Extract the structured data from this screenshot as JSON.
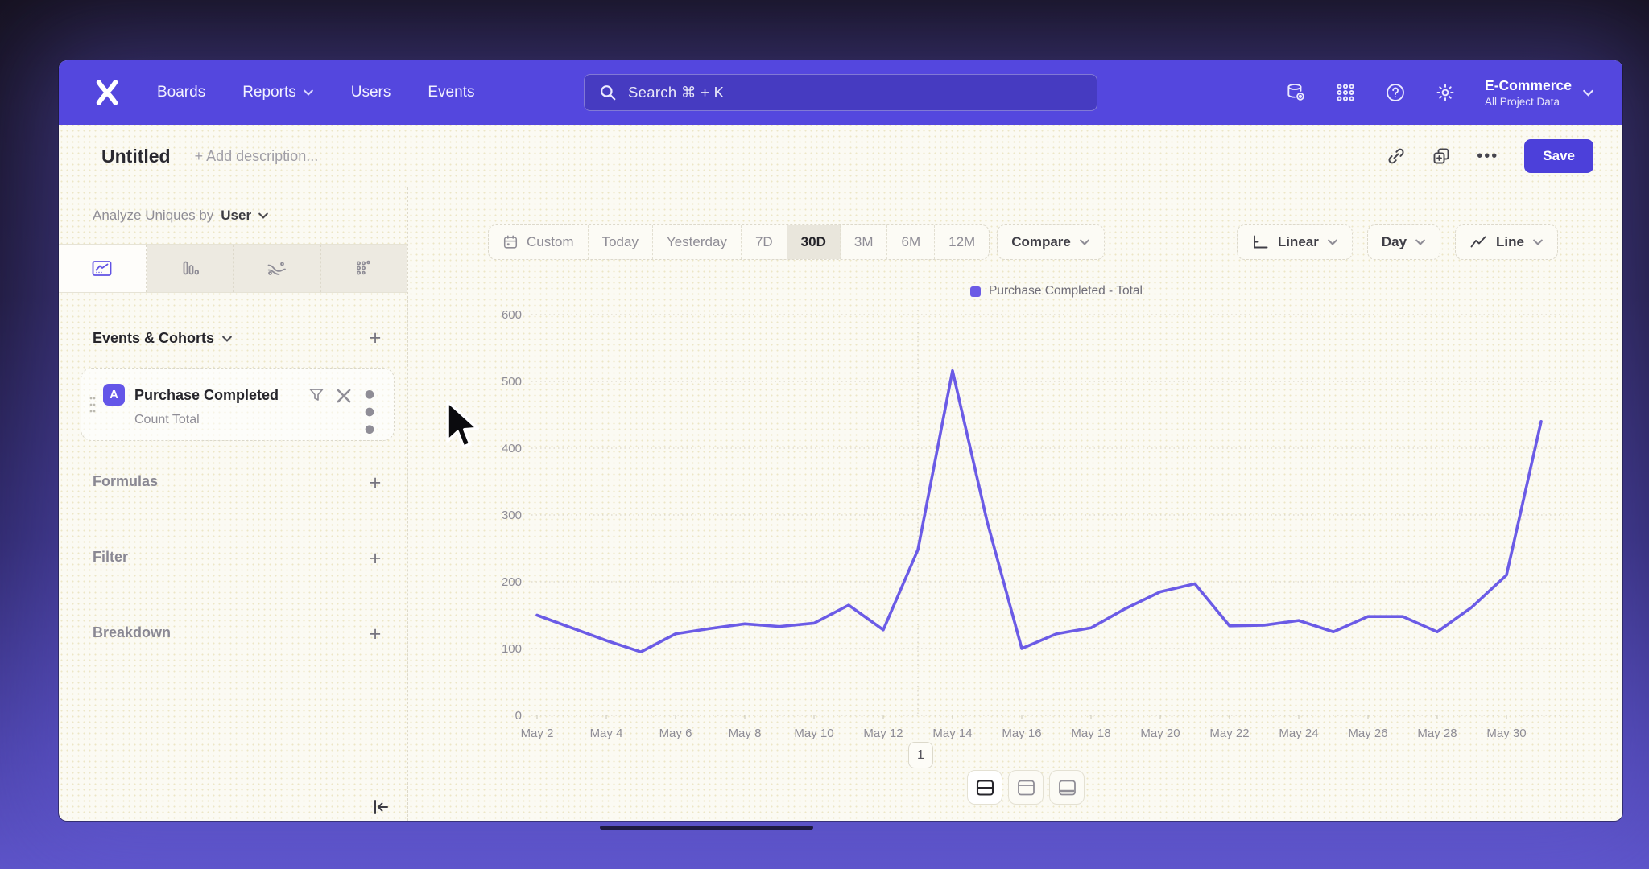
{
  "nav": {
    "items": [
      "Boards",
      "Reports",
      "Users",
      "Events"
    ],
    "search_placeholder": "Search  ⌘ + K",
    "project": {
      "name": "E-Commerce",
      "subtitle": "All Project Data"
    }
  },
  "header": {
    "title": "Untitled",
    "description_placeholder": "+ Add description...",
    "more_label": "•••",
    "save_label": "Save"
  },
  "sidebar": {
    "analyze_label": "Analyze Uniques by",
    "analyze_value": "User",
    "events_section_label": "Events & Cohorts",
    "event_card": {
      "badge": "A",
      "title": "Purchase Completed",
      "subtitle": "Count Total"
    },
    "sections": [
      {
        "label": "Formulas"
      },
      {
        "label": "Filter"
      },
      {
        "label": "Breakdown"
      }
    ]
  },
  "controls": {
    "ranges": [
      "Custom",
      "Today",
      "Yesterday",
      "7D",
      "30D",
      "3M",
      "6M",
      "12M"
    ],
    "selected_range": "30D",
    "compare_label": "Compare",
    "scale_label": "Linear",
    "interval_label": "Day",
    "chart_type_label": "Line"
  },
  "chart_data": {
    "type": "line",
    "legend": "Purchase Completed - Total",
    "categories": [
      "May 2",
      "May 3",
      "May 4",
      "May 5",
      "May 6",
      "May 7",
      "May 8",
      "May 9",
      "May 10",
      "May 11",
      "May 12",
      "May 13",
      "May 14",
      "May 15",
      "May 16",
      "May 17",
      "May 18",
      "May 19",
      "May 20",
      "May 21",
      "May 22",
      "May 23",
      "May 24",
      "May 25",
      "May 26",
      "May 27",
      "May 28",
      "May 29",
      "May 30",
      "May 31"
    ],
    "series": [
      {
        "name": "Purchase Completed - Total",
        "color": "#6b5be6",
        "values": [
          150,
          131,
          112,
          95,
          122,
          130,
          137,
          133,
          138,
          165,
          128,
          248,
          516,
          290,
          100,
          122,
          131,
          160,
          185,
          197,
          134,
          135,
          142,
          125,
          148,
          148,
          125,
          162,
          210,
          440
        ]
      }
    ],
    "ylim": [
      0,
      600
    ],
    "y_ticks": [
      0,
      100,
      200,
      300,
      400,
      500,
      600
    ],
    "x_tick_every": 2,
    "vline_index": 11,
    "grid": "dotted",
    "legend_position": "top-center"
  },
  "footer": {
    "page_label": "1"
  },
  "colors": {
    "accent": "#5447de",
    "line": "#6b5be6",
    "save_button": "#4c40da"
  }
}
